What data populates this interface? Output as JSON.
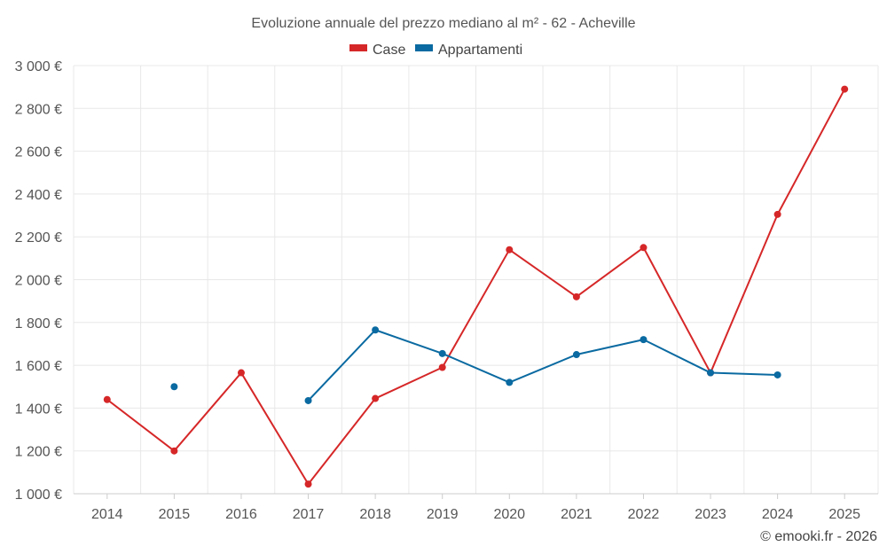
{
  "chart_data": {
    "type": "line",
    "title": "Evoluzione annuale del prezzo mediano al m² - 62 - Acheville",
    "credit": "© emooki.fr - 2026",
    "xlabel": "",
    "ylabel": "",
    "categories": [
      "2014",
      "2015",
      "2016",
      "2017",
      "2018",
      "2019",
      "2020",
      "2021",
      "2022",
      "2023",
      "2024",
      "2025"
    ],
    "y_ticks": [
      1000,
      1200,
      1400,
      1600,
      1800,
      2000,
      2200,
      2400,
      2600,
      2800,
      3000
    ],
    "y_tick_labels": [
      "1 000 €",
      "1 200 €",
      "1 400 €",
      "1 600 €",
      "1 800 €",
      "2 000 €",
      "2 200 €",
      "2 400 €",
      "2 600 €",
      "2 800 €",
      "3 000 €"
    ],
    "ylim": [
      1000,
      3000
    ],
    "grid": true,
    "legend_position": "top-center",
    "series": [
      {
        "name": "Case",
        "color": "#d62728",
        "values": [
          1440,
          1200,
          1565,
          1045,
          1445,
          1590,
          2140,
          1920,
          2150,
          1565,
          2305,
          2890
        ]
      },
      {
        "name": "Appartamenti",
        "color": "#0a6aa1",
        "values": [
          null,
          1500,
          null,
          1435,
          1765,
          1655,
          1520,
          1650,
          1720,
          1565,
          1555,
          null
        ]
      }
    ]
  }
}
